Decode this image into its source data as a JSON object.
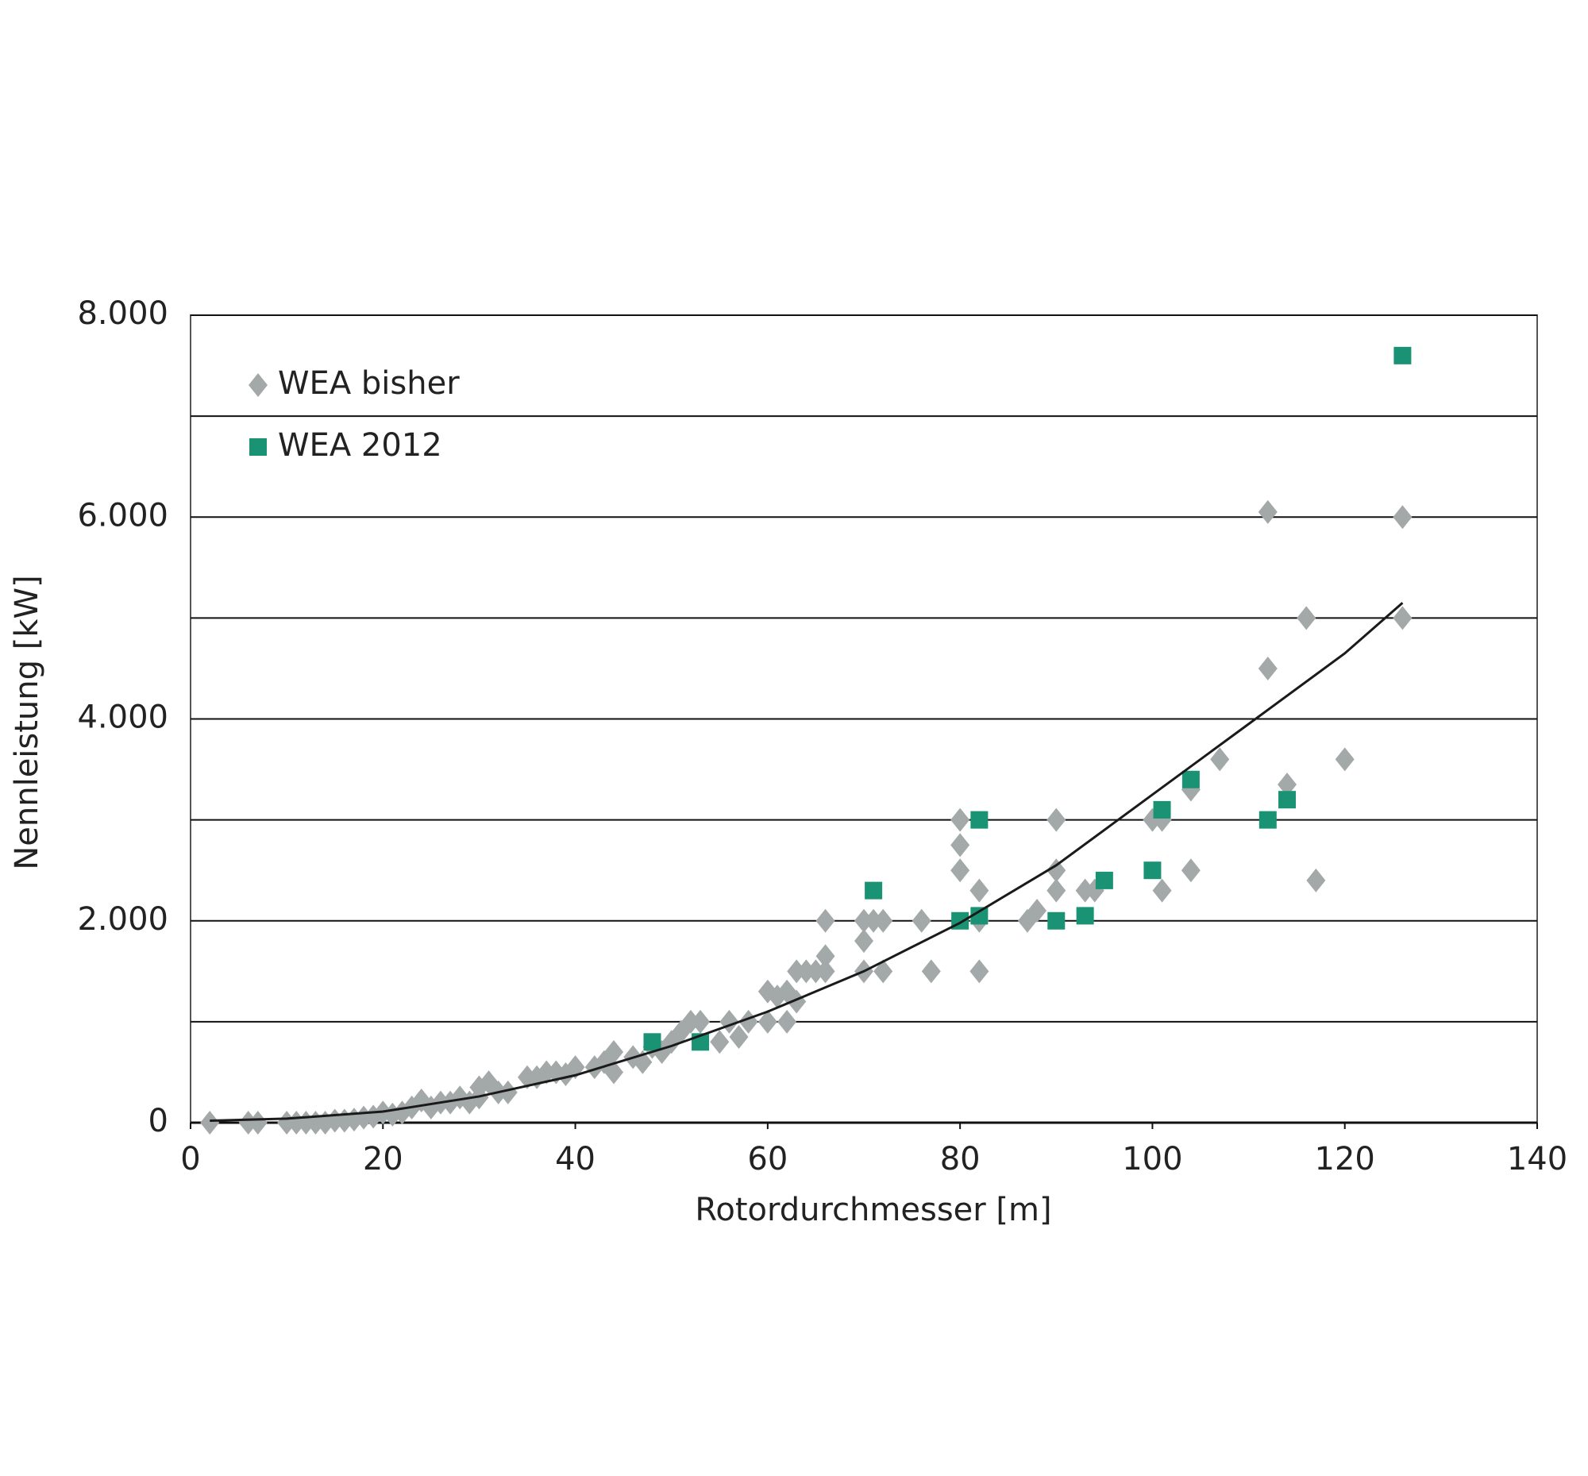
{
  "chart_data": {
    "type": "scatter",
    "xlabel": "Rotordurchmesser [m]",
    "ylabel": "Nennleistung [kW]",
    "xlim": [
      0,
      140
    ],
    "xticks": [
      0,
      20,
      40,
      60,
      80,
      100,
      120,
      140
    ],
    "ylim": [
      0,
      8000
    ],
    "yticks": [
      0,
      {
        "value": 1000,
        "label": null
      },
      {
        "value": 2000,
        "label": "2.000"
      },
      {
        "value": 3000,
        "label": null
      },
      {
        "value": 4000,
        "label": "4.000"
      },
      {
        "value": 5000,
        "label": null
      },
      {
        "value": 6000,
        "label": "6.000"
      },
      {
        "value": 7000,
        "label": null
      },
      {
        "value": 8000,
        "label": "8.000"
      }
    ],
    "grid": true,
    "legend": "upper left",
    "series": [
      {
        "name": "WEA bisher",
        "color": "#a3a9a8",
        "marker": "diamond",
        "x": [
          112,
          126,
          116,
          126,
          112,
          107,
          120,
          114,
          104,
          104,
          117,
          101,
          100,
          101,
          90,
          90,
          90,
          93,
          94,
          87,
          88,
          80,
          80,
          80,
          82,
          82,
          82,
          77,
          76,
          70,
          71,
          72,
          70,
          70,
          72,
          66,
          66,
          65,
          64,
          63,
          66,
          60,
          61,
          62,
          63,
          60,
          62,
          58,
          57,
          56,
          55,
          53,
          52,
          51,
          50,
          49,
          48,
          47,
          46,
          44,
          44,
          43,
          42,
          40,
          39,
          38,
          37,
          36,
          35,
          33,
          32,
          31,
          30,
          30,
          29,
          28,
          27,
          26,
          25,
          24,
          23,
          22,
          21,
          20,
          19,
          18,
          17,
          16,
          15,
          14,
          13,
          12,
          11,
          10,
          7,
          6,
          2
        ],
        "values": [
          6050,
          6000,
          5000,
          5000,
          4500,
          3600,
          3600,
          3350,
          3300,
          2500,
          2400,
          3000,
          3000,
          2300,
          3000,
          2500,
          2300,
          2300,
          2300,
          2000,
          2100,
          3000,
          2750,
          2500,
          2300,
          2000,
          1500,
          1500,
          2000,
          2000,
          2000,
          2000,
          1800,
          1500,
          1500,
          2000,
          1650,
          1500,
          1500,
          1500,
          1500,
          1300,
          1250,
          1300,
          1200,
          1000,
          1000,
          1000,
          850,
          1000,
          800,
          1000,
          1000,
          900,
          800,
          700,
          750,
          600,
          650,
          700,
          500,
          600,
          550,
          550,
          480,
          500,
          500,
          450,
          450,
          300,
          300,
          400,
          350,
          250,
          200,
          250,
          200,
          200,
          150,
          220,
          150,
          100,
          80,
          100,
          60,
          50,
          30,
          20,
          20,
          0,
          0,
          0,
          0,
          0,
          0,
          0,
          0
        ]
      },
      {
        "name": "WEA 2012",
        "color": "#1a9374",
        "marker": "square",
        "x": [
          126,
          114,
          112,
          104,
          101,
          100,
          95,
          93,
          90,
          82,
          82,
          80,
          71,
          53,
          48
        ],
        "values": [
          7600,
          3200,
          3000,
          3400,
          3100,
          2500,
          2400,
          2050,
          2000,
          3000,
          2050,
          2000,
          2300,
          800,
          800
        ]
      },
      {
        "color": "#1a1a1a",
        "marker": "line",
        "x": [
          2,
          10,
          20,
          30,
          40,
          50,
          60,
          70,
          80,
          90,
          100,
          110,
          120,
          126
        ],
        "values": [
          20,
          40,
          110,
          260,
          470,
          760,
          1100,
          1500,
          1980,
          2550,
          3250,
          3950,
          4650,
          5150
        ]
      }
    ]
  }
}
